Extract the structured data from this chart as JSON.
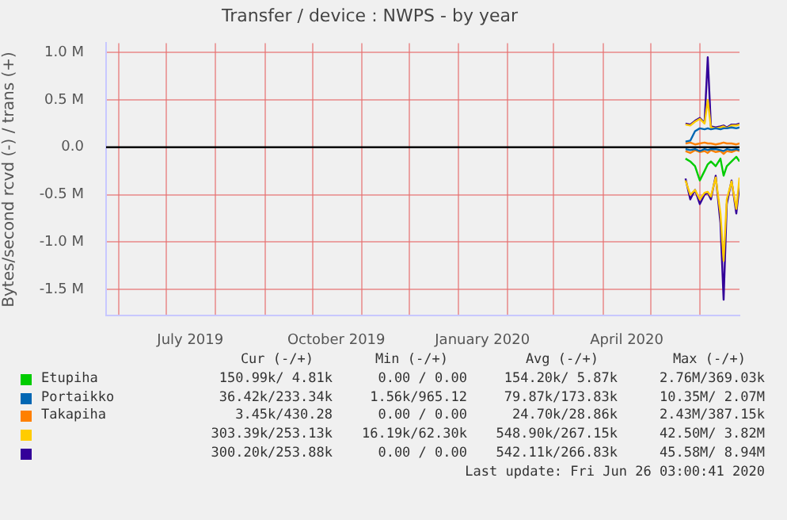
{
  "chart_data": {
    "type": "line",
    "title": "Transfer / device : NWPS - by year",
    "ylabel": "Bytes/second rcvd (-) / trans (+)",
    "x": [
      "2020-05-23",
      "2020-05-26",
      "2020-05-29",
      "2020-06-01",
      "2020-06-04",
      "2020-06-06",
      "2020-06-08",
      "2020-06-11",
      "2020-06-14",
      "2020-06-16",
      "2020-06-18",
      "2020-06-21",
      "2020-06-24",
      "2020-06-26"
    ],
    "xlim": [
      "2019-05-24",
      "2020-06-26"
    ],
    "xticks": [
      {
        "value": "2019-06-01",
        "label": null
      },
      {
        "value": "2019-07-01",
        "label": null
      },
      {
        "value": "2019-07-16",
        "label": "July 2019"
      },
      {
        "value": "2019-08-01",
        "label": null
      },
      {
        "value": "2019-09-01",
        "label": null
      },
      {
        "value": "2019-10-01",
        "label": null
      },
      {
        "value": "2019-10-16",
        "label": "October 2019"
      },
      {
        "value": "2019-11-01",
        "label": null
      },
      {
        "value": "2019-12-01",
        "label": null
      },
      {
        "value": "2020-01-01",
        "label": null
      },
      {
        "value": "2020-01-16",
        "label": "January 2020"
      },
      {
        "value": "2020-02-01",
        "label": null
      },
      {
        "value": "2020-03-01",
        "label": null
      },
      {
        "value": "2020-04-01",
        "label": null
      },
      {
        "value": "2020-04-16",
        "label": "April 2020"
      },
      {
        "value": "2020-05-01",
        "label": null
      },
      {
        "value": "2020-06-01",
        "label": null
      }
    ],
    "ylim": [
      -1780000,
      1100000
    ],
    "yticks": [
      {
        "value": -1500000,
        "label": "-1.5 M"
      },
      {
        "value": -1000000,
        "label": "-1.0 M"
      },
      {
        "value": -500000,
        "label": "-0.5 M"
      },
      {
        "value": 0,
        "label": "0.0"
      },
      {
        "value": 500000,
        "label": "0.5 M"
      },
      {
        "value": 1000000,
        "label": "1.0 M"
      }
    ],
    "grid": true,
    "legend": "bottom",
    "marker": "none",
    "line_style": "solid",
    "ref_lines": [
      {
        "axis": "y",
        "value": 0,
        "color": "#000000"
      }
    ],
    "series": [
      {
        "name": "Etupiha",
        "color": "#00cc00",
        "values": [
          null,
          null,
          null,
          null,
          null,
          null,
          null,
          null,
          null,
          null,
          null,
          null,
          null,
          null
        ]
      },
      {
        "color": "#00cc00",
        "values": [
          -120000,
          -150000,
          -200000,
          -350000,
          -250000,
          -180000,
          -150000,
          -200000,
          -120000,
          -300000,
          -200000,
          -150000,
          -100000,
          -150000
        ]
      },
      {
        "name": "Portaikko",
        "color": "#0066b3",
        "values": [
          60000,
          70000,
          170000,
          200000,
          190000,
          200000,
          190000,
          200000,
          190000,
          200000,
          200000,
          210000,
          200000,
          210000
        ]
      },
      {
        "color": "#0066b3",
        "values": [
          -20000,
          -30000,
          -20000,
          -40000,
          -20000,
          -30000,
          -20000,
          -20000,
          -30000,
          -40000,
          -20000,
          -30000,
          -20000,
          -30000
        ]
      },
      {
        "name": "Takapiha",
        "color": "#ff8000",
        "values": [
          40000,
          50000,
          30000,
          40000,
          50000,
          40000,
          40000,
          30000,
          40000,
          50000,
          40000,
          40000,
          30000,
          40000
        ]
      },
      {
        "color": "#ff8000",
        "values": [
          -40000,
          -60000,
          -30000,
          -50000,
          -40000,
          -60000,
          -30000,
          -50000,
          -40000,
          -70000,
          -40000,
          -50000,
          -30000,
          -40000
        ]
      },
      {
        "color": "#ffcc00",
        "values": [
          240000,
          230000,
          270000,
          300000,
          250000,
          500000,
          210000,
          200000,
          210000,
          220000,
          200000,
          230000,
          230000,
          240000
        ]
      },
      {
        "color": "#ffcc00",
        "values": [
          -350000,
          -500000,
          -450000,
          -550000,
          -480000,
          -470000,
          -520000,
          -320000,
          -700000,
          -1200000,
          -550000,
          -360000,
          -650000,
          -320000
        ]
      },
      {
        "color": "#330099",
        "values": [
          250000,
          240000,
          280000,
          310000,
          260000,
          950000,
          220000,
          210000,
          220000,
          230000,
          210000,
          240000,
          240000,
          250000
        ]
      },
      {
        "color": "#330099",
        "values": [
          -330000,
          -550000,
          -450000,
          -600000,
          -500000,
          -480000,
          -550000,
          -300000,
          -800000,
          -1610000,
          -600000,
          -350000,
          -700000,
          -400000
        ]
      }
    ],
    "annotations": [
      "Cur (-/+)",
      "Min (-/+)",
      "Avg (-/+)",
      "Max (-/+)",
      "150.99k/ 4.81k",
      "0.00 / 0.00",
      "154.20k/ 5.87k",
      "2.76M/369.03k",
      "36.42k/233.34k",
      "1.56k/965.12",
      "79.87k/173.83k",
      "10.35M/ 2.07M",
      "3.45k/430.28",
      "0.00 / 0.00",
      "24.70k/28.86k",
      "2.43M/387.15k",
      "303.39k/253.13k",
      "16.19k/62.30k",
      "548.90k/267.15k",
      "42.50M/ 3.82M",
      "300.20k/253.88k",
      "0.00 / 0.00",
      "542.11k/266.83k",
      "45.58M/ 8.94M",
      "Last update: Fri Jun 26 03:00:41 2020"
    ]
  }
}
